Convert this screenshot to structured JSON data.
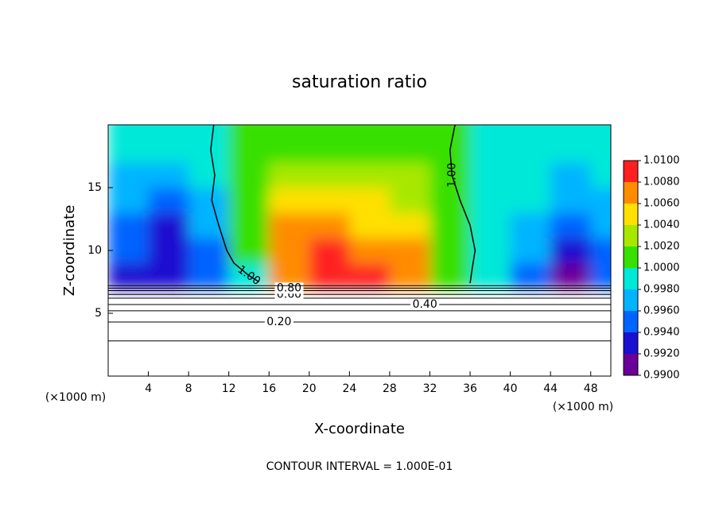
{
  "chart_data": {
    "type": "contour",
    "title": "saturation ratio",
    "x_label": "X-coordinate",
    "y_label": "Z-coordinate",
    "x_unit": "(×1000 m)",
    "y_unit": "(×1000 m)",
    "footer": "CONTOUR INTERVAL = 1.000E-01",
    "xlim": [
      0,
      50
    ],
    "ylim": [
      0,
      20
    ],
    "xticks": [
      4,
      8,
      12,
      16,
      20,
      24,
      28,
      32,
      36,
      40,
      44,
      48
    ],
    "yticks": [
      5,
      10,
      15
    ],
    "levels": [
      0.99,
      0.992,
      0.994,
      0.996,
      0.998,
      1.0,
      1.002,
      1.004,
      1.006,
      1.008,
      1.01
    ],
    "colors": [
      "#6a0099",
      "#1a10d0",
      "#0064ff",
      "#00b4ff",
      "#00e8d8",
      "#38e000",
      "#a8e800",
      "#ffe000",
      "#ff8c00",
      "#ff2020"
    ],
    "colorbar_ticks": [
      {
        "value": 0.99,
        "label": "0.9900"
      },
      {
        "value": 0.992,
        "label": "0.9920"
      },
      {
        "value": 0.994,
        "label": "0.9940"
      },
      {
        "value": 0.996,
        "label": "0.9960"
      },
      {
        "value": 0.998,
        "label": "0.9980"
      },
      {
        "value": 1.0,
        "label": "1.0000"
      },
      {
        "value": 1.002,
        "label": "1.0020"
      },
      {
        "value": 1.004,
        "label": "1.0040"
      },
      {
        "value": 1.006,
        "label": "1.0060"
      },
      {
        "value": 1.008,
        "label": "1.0080"
      },
      {
        "value": 1.01,
        "label": "1.0100"
      }
    ],
    "field": {
      "x": [
        2,
        6,
        10,
        14,
        18,
        22,
        26,
        30,
        34,
        38,
        42,
        46,
        50
      ],
      "z": [
        8,
        10,
        12,
        14,
        16,
        18,
        20
      ],
      "values": [
        [
          0.9935,
          0.992,
          0.995,
          0.9995,
          1.007,
          1.008,
          1.008,
          1.007,
          1.0,
          0.999,
          0.995,
          0.991,
          0.994
        ],
        [
          0.994,
          0.992,
          0.995,
          1.0,
          1.007,
          1.008,
          1.007,
          1.006,
          1.0,
          0.999,
          0.996,
          0.992,
          0.994
        ],
        [
          0.995,
          0.993,
          0.996,
          1.0,
          1.006,
          1.007,
          1.005,
          1.005,
          1.001,
          0.999,
          0.997,
          0.994,
          0.996
        ],
        [
          0.996,
          0.995,
          0.997,
          1.0,
          1.004,
          1.005,
          1.004,
          1.003,
          1.001,
          0.999,
          0.998,
          0.996,
          0.997
        ],
        [
          0.997,
          0.996,
          0.998,
          1.0,
          1.002,
          1.003,
          1.003,
          1.002,
          1.0,
          0.999,
          0.998,
          0.997,
          0.998
        ],
        [
          0.998,
          0.998,
          0.999,
          1.0,
          1.001,
          1.001,
          1.001,
          1.001,
          1.0,
          0.999,
          0.999,
          0.998,
          0.998
        ],
        [
          0.998,
          0.998,
          0.999,
          1.0,
          1.001,
          1.001,
          1.001,
          1.001,
          1.0,
          0.999,
          0.999,
          0.998,
          0.998
        ]
      ]
    },
    "contours": [
      {
        "level": 0.1,
        "z": 2.8
      },
      {
        "level": 0.2,
        "z": 4.3,
        "label": "0.20"
      },
      {
        "level": 0.3,
        "z": 5.2
      },
      {
        "level": 0.4,
        "z": 5.7,
        "label": "0.40"
      },
      {
        "level": 0.5,
        "z": 6.2
      },
      {
        "level": 0.6,
        "z": 6.5,
        "label": "0.60"
      },
      {
        "level": 0.7,
        "z": 6.8
      },
      {
        "level": 0.8,
        "z": 7.0,
        "label": "0.80"
      },
      {
        "level": 0.9,
        "z": 7.2
      }
    ],
    "unity_contours": [
      {
        "level": 1.0,
        "label": "1.00",
        "x": [
          10.5,
          10.2,
          10.6,
          10.3,
          11,
          11.8,
          12.5,
          14,
          15
        ],
        "z": [
          20,
          18,
          16,
          14,
          12,
          10,
          9,
          8,
          7.5
        ]
      },
      {
        "level": 1.0,
        "label": "1.00",
        "x": [
          34.5,
          34,
          34.2,
          35,
          36,
          36.5,
          36.2,
          36
        ],
        "z": [
          20,
          18,
          16,
          14,
          12,
          10,
          8.5,
          7.4
        ]
      }
    ]
  }
}
